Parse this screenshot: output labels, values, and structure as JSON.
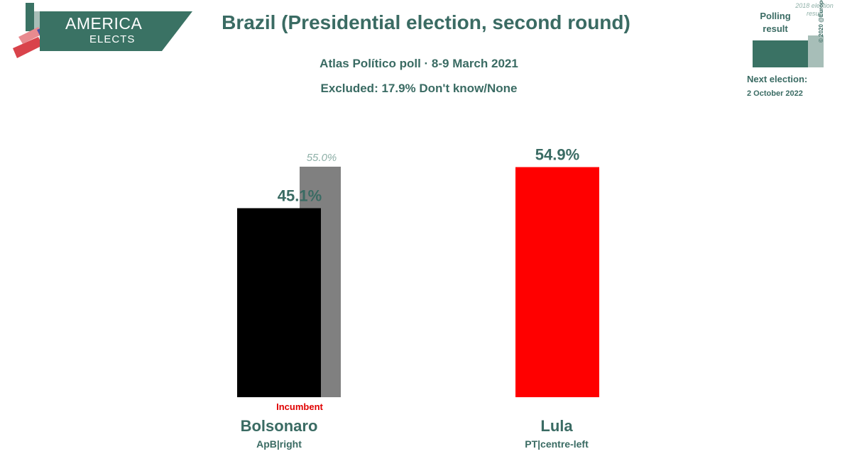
{
  "logo": {
    "line1": "AMERICA",
    "line2": "ELECTS"
  },
  "header": {
    "title": "Brazil (Presidential election, second round)",
    "subtitle": "Atlas Político poll · 8-9 March 2021",
    "excluded": "Excluded: 17.9% Don't know/None"
  },
  "legend": {
    "poll_label": "Polling result",
    "previous_label": "2018 election result",
    "copyright": "© 2020 @EuropeElects",
    "next_election_label": "Next election:",
    "next_election_date": "2 October 2022"
  },
  "colors": {
    "accent": "#3a7264",
    "text": "#3a6b63",
    "previous_label": "#8fb0a8",
    "incumbent": "#e00000"
  },
  "chart_data": {
    "type": "bar",
    "categories": [
      "Bolsonaro",
      "Lula"
    ],
    "ylim": [
      0,
      60
    ],
    "series": [
      {
        "values": [
          45.1,
          54.9
        ],
        "labels": [
          "45.1%",
          "54.9%"
        ],
        "colors": [
          "#000000",
          "#ff0000"
        ]
      },
      {
        "values": [
          55.0,
          null
        ],
        "labels": [
          "55.0%",
          null
        ],
        "colors": [
          "#808080",
          null
        ]
      }
    ],
    "candidates": [
      {
        "name": "Bolsonaro",
        "party": "ApB|right",
        "note": "Incumbent"
      },
      {
        "name": "Lula",
        "party": "PT|centre-left",
        "note": ""
      }
    ]
  }
}
